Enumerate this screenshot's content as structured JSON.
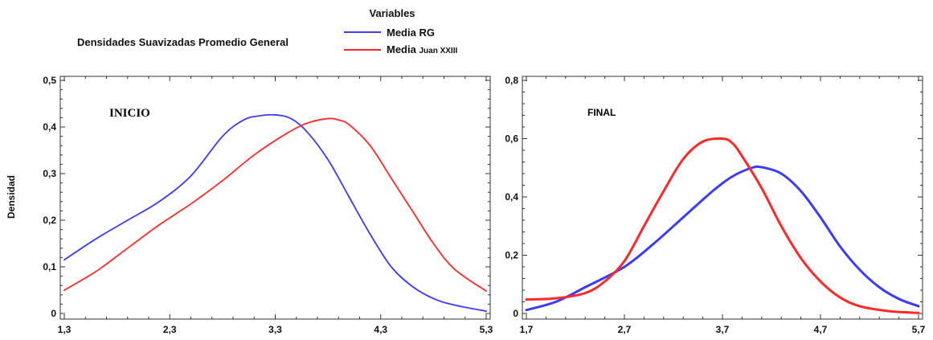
{
  "header": {
    "title": "Densidades Suavizadas Promedio General",
    "legend_title": "Variables",
    "legend": [
      {
        "main": "Media",
        "bold": "RG",
        "color": "#3b3bff"
      },
      {
        "main": "Media",
        "bold": "Juan XXIII",
        "color": "#ff2a2a"
      }
    ]
  },
  "colors": {
    "blue": "#3b3bff",
    "red": "#ff2a2a"
  },
  "chart_data": [
    {
      "type": "line",
      "annotation": "INICIO",
      "ylabel": "Densidad",
      "xlim": [
        1.3,
        5.3
      ],
      "ylim": [
        0,
        0.5
      ],
      "xticks": [
        "1,3",
        "2,3",
        "3,3",
        "4,3",
        "5,3"
      ],
      "yticks": [
        "0",
        "0,1",
        "0,2",
        "0,3",
        "0,4",
        "0,5"
      ],
      "series": [
        {
          "name": "Media RG",
          "color": "#3b3bff",
          "x": [
            1.3,
            1.6,
            1.9,
            2.2,
            2.5,
            2.8,
            3.0,
            3.15,
            3.3,
            3.45,
            3.6,
            3.8,
            4.0,
            4.2,
            4.4,
            4.6,
            4.8,
            5.0,
            5.3
          ],
          "y": [
            0.115,
            0.16,
            0.2,
            0.24,
            0.295,
            0.38,
            0.415,
            0.424,
            0.426,
            0.418,
            0.39,
            0.33,
            0.25,
            0.17,
            0.1,
            0.058,
            0.032,
            0.018,
            0.005
          ]
        },
        {
          "name": "Media Juan XXIII",
          "color": "#ff2a2a",
          "x": [
            1.3,
            1.6,
            1.9,
            2.2,
            2.5,
            2.8,
            3.1,
            3.4,
            3.6,
            3.8,
            3.9,
            4.0,
            4.2,
            4.4,
            4.6,
            4.8,
            5.0,
            5.3
          ],
          "y": [
            0.05,
            0.09,
            0.14,
            0.19,
            0.235,
            0.285,
            0.34,
            0.385,
            0.408,
            0.418,
            0.415,
            0.405,
            0.36,
            0.29,
            0.22,
            0.15,
            0.095,
            0.048
          ]
        }
      ]
    },
    {
      "type": "line",
      "annotation": "FINAL",
      "ylabel": "",
      "xlim": [
        1.7,
        5.7
      ],
      "ylim": [
        0,
        0.8
      ],
      "xticks": [
        "1,7",
        "2,7",
        "3,7",
        "4,7",
        "5,7"
      ],
      "yticks": [
        "0",
        "0,2",
        "0,4",
        "0,6",
        "0,8"
      ],
      "series": [
        {
          "name": "Media RG",
          "color": "#3b3bff",
          "x": [
            1.7,
            2.0,
            2.3,
            2.7,
            3.0,
            3.3,
            3.6,
            3.8,
            4.0,
            4.1,
            4.3,
            4.5,
            4.7,
            4.9,
            5.1,
            5.3,
            5.5,
            5.7
          ],
          "y": [
            0.012,
            0.04,
            0.09,
            0.16,
            0.24,
            0.33,
            0.42,
            0.47,
            0.5,
            0.502,
            0.48,
            0.42,
            0.33,
            0.23,
            0.15,
            0.09,
            0.05,
            0.025
          ]
        },
        {
          "name": "Media Juan XXIII",
          "color": "#ff2a2a",
          "x": [
            1.7,
            2.0,
            2.3,
            2.5,
            2.7,
            2.9,
            3.1,
            3.3,
            3.5,
            3.7,
            3.8,
            3.9,
            4.1,
            4.3,
            4.5,
            4.7,
            4.9,
            5.1,
            5.4,
            5.7
          ],
          "y": [
            0.048,
            0.052,
            0.07,
            0.11,
            0.18,
            0.3,
            0.42,
            0.53,
            0.59,
            0.6,
            0.585,
            0.54,
            0.43,
            0.3,
            0.19,
            0.11,
            0.055,
            0.025,
            0.008,
            0.002
          ]
        }
      ]
    }
  ]
}
